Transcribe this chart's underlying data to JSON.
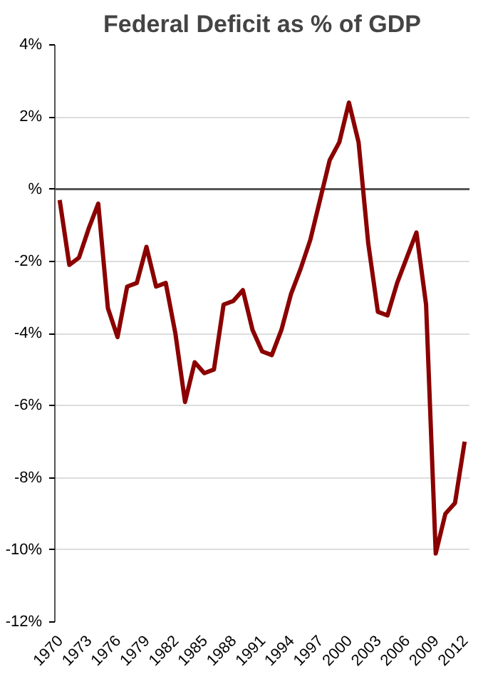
{
  "chart_data": {
    "type": "line",
    "title": "Federal Deficit as % of GDP",
    "categories": [
      "1970",
      null,
      null,
      "1973",
      null,
      null,
      "1976",
      null,
      null,
      "1979",
      null,
      null,
      "1982",
      null,
      null,
      "1985",
      null,
      null,
      "1988",
      null,
      null,
      "1991",
      null,
      null,
      "1994",
      null,
      null,
      "1997",
      null,
      null,
      "2000",
      null,
      null,
      "2003",
      null,
      null,
      "2006",
      null,
      null,
      "2009",
      null,
      null,
      "2012"
    ],
    "series": [
      {
        "color": "#8b0000",
        "values": [
          -0.3,
          -2.1,
          -1.9,
          -1.1,
          -0.4,
          -3.3,
          -4.1,
          -2.7,
          -2.6,
          -1.6,
          -2.7,
          -2.6,
          -4.0,
          -5.9,
          -4.8,
          -5.1,
          -5.0,
          -3.2,
          -3.1,
          -2.8,
          -3.9,
          -4.5,
          -4.6,
          -3.9,
          -2.9,
          -2.2,
          -1.4,
          -0.3,
          0.8,
          1.3,
          2.4,
          1.3,
          -1.5,
          -3.4,
          -3.5,
          -2.6,
          -1.9,
          -1.2,
          -3.2,
          -10.1,
          -9.0,
          -8.7,
          -7.0
        ]
      }
    ],
    "ylim": [
      -12,
      4
    ],
    "yticks": [
      {
        "value": 4,
        "label": "4%"
      },
      {
        "value": 2,
        "label": "2%"
      },
      {
        "value": 0,
        "label": "%"
      },
      {
        "value": -2,
        "label": "-2%"
      },
      {
        "value": -4,
        "label": "-4%"
      },
      {
        "value": -6,
        "label": "-6%"
      },
      {
        "value": -8,
        "label": "-8%"
      },
      {
        "value": -10,
        "label": "-10%"
      },
      {
        "value": -12,
        "label": "-12%"
      }
    ],
    "grid": "y",
    "marker": "none",
    "line_style": "solid"
  }
}
